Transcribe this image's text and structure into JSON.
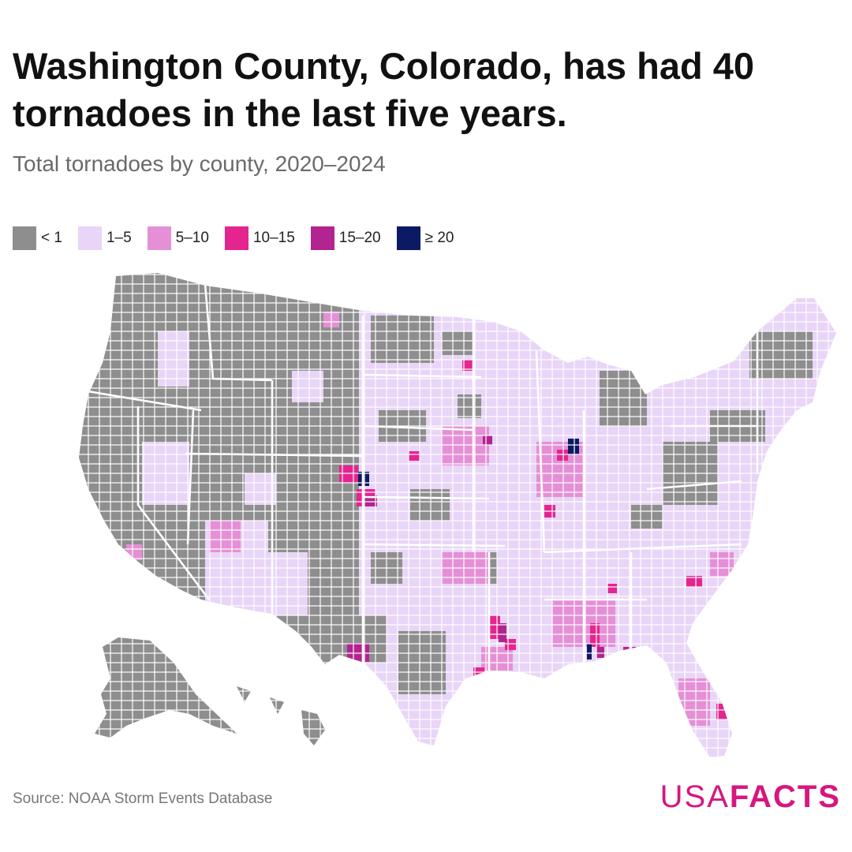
{
  "header": {
    "title": "Washington County, Colorado, has had 40 tornadoes in the last five years.",
    "subtitle": "Total tornadoes by county, 2020–2024"
  },
  "legend": [
    {
      "label": "< 1",
      "color": "#8e8e8e"
    },
    {
      "label": "1–5",
      "color": "#e8d5f7"
    },
    {
      "label": "5–10",
      "color": "#e590d6"
    },
    {
      "label": "10–15",
      "color": "#e5258f"
    },
    {
      "label": "15–20",
      "color": "#b22590"
    },
    {
      "label": "≥ 20",
      "color": "#0c1a63"
    }
  ],
  "footer": {
    "source": "Source: NOAA Storm Events Database",
    "logo_light": "USA",
    "logo_bold": "FACTS"
  },
  "map_colors": {
    "low": "#8e8e8e",
    "light": "#e8d5f7",
    "mid": "#e590d6",
    "hot": "#e5258f",
    "purple": "#b22590",
    "navy": "#0c1a63",
    "border": "#ffffff"
  }
}
